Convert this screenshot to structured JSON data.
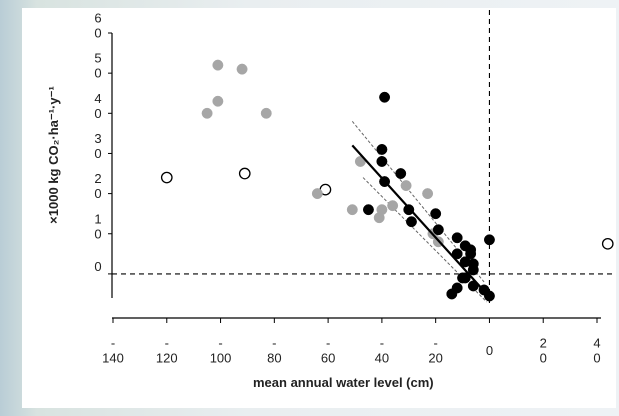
{
  "chart_data": {
    "type": "scatter",
    "ylabel": "×1000 kg CO₂·ha⁻¹·y⁻¹",
    "xlabel": "mean annual water level (cm)",
    "xlim": [
      -140,
      40
    ],
    "ylim": [
      -6,
      60
    ],
    "xticks": [
      -140,
      -120,
      -100,
      -80,
      -60,
      -40,
      -20,
      0,
      20,
      40
    ],
    "yticks": [
      0,
      10,
      20,
      30,
      40,
      50,
      60
    ],
    "hline": 0,
    "vline": 0,
    "series": [
      {
        "style": "open",
        "color": "#000000",
        "x": [
          -120,
          -91,
          -61,
          44
        ],
        "y": [
          24,
          25,
          21,
          7.5
        ]
      },
      {
        "style": "filled",
        "color": "#a6a6a6",
        "x": [
          -105,
          -101,
          -101,
          -92,
          -83,
          -64,
          -51,
          -48,
          -41,
          -40,
          -36,
          -31,
          -23,
          -21,
          -19
        ],
        "y": [
          40,
          52,
          43,
          51,
          40,
          20,
          16,
          28,
          14,
          16,
          17,
          22,
          20,
          10,
          8
        ]
      },
      {
        "style": "filled",
        "color": "#000000",
        "x": [
          -39,
          -40,
          -40,
          -39,
          -33,
          -45,
          -30,
          -29,
          -20,
          -19,
          -12,
          -12,
          -9,
          -7,
          -9,
          -6,
          -6,
          -9,
          -12,
          -14,
          -6,
          -2,
          0,
          0,
          -7,
          -10
        ],
        "y": [
          44,
          31,
          28,
          23,
          25,
          16,
          16,
          13,
          15,
          11,
          9,
          5,
          7,
          6,
          3,
          2.5,
          1,
          -1,
          -3.5,
          -5,
          -3,
          -4,
          -5.5,
          8.5,
          5,
          -1
        ]
      }
    ],
    "fit": {
      "x": [
        -51,
        -1
      ],
      "y": [
        32,
        -5
      ]
    },
    "ci_upper": {
      "x": [
        -51,
        -2
      ],
      "y": [
        38,
        -2
      ]
    },
    "ci_lower": {
      "x": [
        -47,
        -1
      ],
      "y": [
        24,
        -7
      ]
    }
  }
}
